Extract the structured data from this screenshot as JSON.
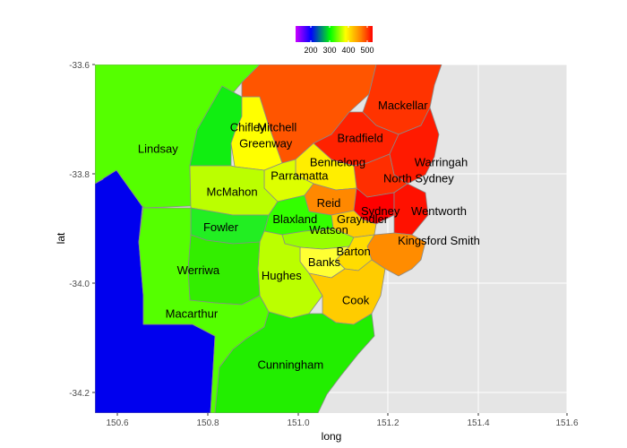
{
  "chart_data": {
    "type": "choropleth",
    "xlabel": "long",
    "ylabel": "lat",
    "xlim": [
      150.55,
      151.6
    ],
    "ylim": [
      -34.245,
      -33.6
    ],
    "x_ticks": [
      150.6,
      150.8,
      151.0,
      151.2,
      151.4,
      151.6
    ],
    "x_tick_labels": [
      "150.6",
      "150.8",
      "151.0",
      "151.2",
      "151.4",
      "151.6"
    ],
    "y_ticks": [
      -33.6,
      -33.8,
      -34.0,
      -34.2
    ],
    "y_tick_labels": [
      "-33.6",
      "-33.8",
      "-34.0",
      "-34.2"
    ],
    "grid": true,
    "panel_background": "#e5e5e5",
    "grid_color": "#ffffff",
    "legend": {
      "position": "top",
      "colors": [
        "#cc00ff",
        "#0000ff",
        "#00ff00",
        "#ffff00",
        "#ff7f00",
        "#ff0000"
      ],
      "tick_values": [
        200,
        300,
        400,
        500
      ],
      "tick_labels": [
        "200",
        "300",
        "400",
        "500"
      ],
      "range": [
        130,
        540
      ]
    },
    "background_region_color": "#0000ee",
    "regions": [
      {
        "name": "Lindsay",
        "color": "#55ff00",
        "lx": 150.69,
        "ly": -33.755
      },
      {
        "name": "Chifley",
        "color": "#11ee11",
        "lx": 150.89,
        "ly": -33.715
      },
      {
        "name": "Mitchell",
        "color": "#ff5500",
        "lx": 150.955,
        "ly": -33.715
      },
      {
        "name": "Greenway",
        "color": "#ffff00",
        "lx": 150.93,
        "ly": -33.745
      },
      {
        "name": "Mackellar",
        "color": "#ff3300",
        "lx": 151.235,
        "ly": -33.675
      },
      {
        "name": "Bradfield",
        "color": "#ff2200",
        "lx": 151.14,
        "ly": -33.735
      },
      {
        "name": "Bennelong",
        "color": "#ffee00",
        "lx": 151.09,
        "ly": -33.78
      },
      {
        "name": "Parramatta",
        "color": "#ddff00",
        "lx": 151.005,
        "ly": -33.805
      },
      {
        "name": "Warringah",
        "color": "#ff1a00",
        "lx": 151.32,
        "ly": -33.78
      },
      {
        "name": "North Sydney",
        "color": "#ff2e00",
        "lx": 151.27,
        "ly": -33.81
      },
      {
        "name": "McMahon",
        "color": "#bbff00",
        "lx": 150.855,
        "ly": -33.835
      },
      {
        "name": "Reid",
        "color": "#ff8800",
        "lx": 151.07,
        "ly": -33.855
      },
      {
        "name": "Sydney",
        "color": "#ff0000",
        "lx": 151.185,
        "ly": -33.87
      },
      {
        "name": "Wentworth",
        "color": "#ff1100",
        "lx": 151.315,
        "ly": -33.87
      },
      {
        "name": "Grayndler",
        "color": "#ffcc00",
        "lx": 151.145,
        "ly": -33.885
      },
      {
        "name": "Blaxland",
        "color": "#33ff00",
        "lx": 150.995,
        "ly": -33.885
      },
      {
        "name": "Fowler",
        "color": "#22ee22",
        "lx": 150.83,
        "ly": -33.9
      },
      {
        "name": "Watson",
        "color": "#99ff00",
        "lx": 151.07,
        "ly": -33.905
      },
      {
        "name": "Kingsford Smith",
        "color": "#ff8c00",
        "lx": 151.315,
        "ly": -33.925
      },
      {
        "name": "Barton",
        "color": "#ffdd00",
        "lx": 151.125,
        "ly": -33.945
      },
      {
        "name": "Banks",
        "color": "#ffff33",
        "lx": 151.06,
        "ly": -33.965
      },
      {
        "name": "Werriwa",
        "color": "#33ee00",
        "lx": 150.78,
        "ly": -33.98
      },
      {
        "name": "Hughes",
        "color": "#bbff00",
        "lx": 150.965,
        "ly": -33.99
      },
      {
        "name": "Cook",
        "color": "#ffcc00",
        "lx": 151.13,
        "ly": -34.035
      },
      {
        "name": "Macarthur",
        "color": "#55ff00",
        "lx": 150.765,
        "ly": -34.06
      },
      {
        "name": "Cunningham",
        "color": "#22ee00",
        "lx": 150.985,
        "ly": -34.155
      }
    ]
  }
}
